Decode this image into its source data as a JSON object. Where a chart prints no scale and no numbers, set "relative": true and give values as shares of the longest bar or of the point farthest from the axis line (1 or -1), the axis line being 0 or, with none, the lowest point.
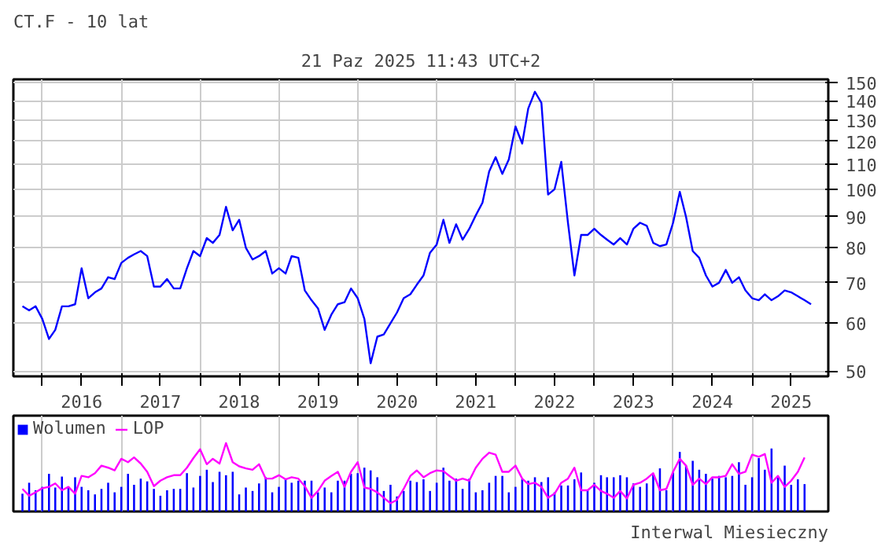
{
  "chart_data": [
    {
      "type": "line",
      "title": "CT.F - 10 lat",
      "annotations": [
        "21 Paz 2025 11:43 UTC+2"
      ],
      "x": [
        "2015-10",
        "2015-11",
        "2015-12",
        "2016-01",
        "2016-02",
        "2016-03",
        "2016-04",
        "2016-05",
        "2016-06",
        "2016-07",
        "2016-08",
        "2016-09",
        "2016-10",
        "2016-11",
        "2016-12",
        "2017-01",
        "2017-02",
        "2017-03",
        "2017-04",
        "2017-05",
        "2017-06",
        "2017-07",
        "2017-08",
        "2017-09",
        "2017-10",
        "2017-11",
        "2017-12",
        "2018-01",
        "2018-02",
        "2018-03",
        "2018-04",
        "2018-05",
        "2018-06",
        "2018-07",
        "2018-08",
        "2018-09",
        "2018-10",
        "2018-11",
        "2018-12",
        "2019-01",
        "2019-02",
        "2019-03",
        "2019-04",
        "2019-05",
        "2019-06",
        "2019-07",
        "2019-08",
        "2019-09",
        "2019-10",
        "2019-11",
        "2019-12",
        "2020-01",
        "2020-02",
        "2020-03",
        "2020-04",
        "2020-05",
        "2020-06",
        "2020-07",
        "2020-08",
        "2020-09",
        "2020-10",
        "2020-11",
        "2020-12",
        "2021-01",
        "2021-02",
        "2021-03",
        "2021-04",
        "2021-05",
        "2021-06",
        "2021-07",
        "2021-08",
        "2021-09",
        "2021-10",
        "2021-11",
        "2021-12",
        "2022-01",
        "2022-02",
        "2022-03",
        "2022-04",
        "2022-05",
        "2022-06",
        "2022-07",
        "2022-08",
        "2022-09",
        "2022-10",
        "2022-11",
        "2022-12",
        "2023-01",
        "2023-02",
        "2023-03",
        "2023-04",
        "2023-05",
        "2023-06",
        "2023-07",
        "2023-08",
        "2023-09",
        "2023-10",
        "2023-11",
        "2023-12",
        "2024-01",
        "2024-02",
        "2024-03",
        "2024-04",
        "2024-05",
        "2024-06",
        "2024-07",
        "2024-08",
        "2024-09",
        "2024-10",
        "2024-11",
        "2024-12",
        "2025-01",
        "2025-02",
        "2025-03",
        "2025-04",
        "2025-05",
        "2025-06",
        "2025-07",
        "2025-08",
        "2025-09",
        "2025-10"
      ],
      "values": [
        64,
        63,
        64,
        61,
        56.5,
        58.5,
        64,
        64,
        64.5,
        74,
        66,
        67.5,
        68.5,
        71.5,
        71,
        75.5,
        77,
        78,
        79,
        77.5,
        69,
        69,
        71,
        68.5,
        68.5,
        74,
        79,
        77.5,
        83,
        81.5,
        84,
        93.5,
        85.5,
        89,
        80,
        76.5,
        77.5,
        79,
        72.5,
        74,
        72.5,
        77.5,
        77,
        68,
        65.5,
        63.5,
        58.5,
        62,
        64.5,
        65,
        68.5,
        66,
        61,
        51.5,
        57,
        57.5,
        60,
        62.5,
        66,
        67,
        69.5,
        72,
        78.5,
        81,
        89,
        81.5,
        87.5,
        82.5,
        86,
        90.5,
        95,
        107,
        113,
        106,
        112,
        127,
        119,
        136,
        145,
        139,
        98,
        100,
        111,
        88,
        72,
        84,
        84,
        86,
        84,
        82.5,
        81,
        83,
        81,
        86,
        88,
        87,
        81.5,
        80.5,
        81,
        88,
        99,
        90,
        79,
        77,
        72,
        69,
        70,
        73.5,
        70,
        71.5,
        68,
        66,
        65.5,
        67,
        65.5,
        66.5,
        68,
        67.5,
        66.5,
        65.5,
        64.5
      ],
      "color": "#0000ff",
      "log": "y",
      "ylim": [
        49,
        152
      ],
      "yticks": [
        50,
        60,
        70,
        80,
        90,
        100,
        110,
        120,
        130,
        140,
        150
      ],
      "xlim": [
        "2015-08-20",
        "2025-12-20"
      ],
      "xticks": [
        {
          "value": "2016-01-01",
          "label": null
        },
        {
          "value": "2016-07-01",
          "label": "2016"
        },
        {
          "value": "2017-01-01",
          "label": null
        },
        {
          "value": "2017-07-01",
          "label": "2017"
        },
        {
          "value": "2018-01-01",
          "label": null
        },
        {
          "value": "2018-07-01",
          "label": "2018"
        },
        {
          "value": "2019-01-01",
          "label": null
        },
        {
          "value": "2019-07-01",
          "label": "2019"
        },
        {
          "value": "2020-01-01",
          "label": null
        },
        {
          "value": "2020-07-01",
          "label": "2020"
        },
        {
          "value": "2021-01-01",
          "label": null
        },
        {
          "value": "2021-07-01",
          "label": "2021"
        },
        {
          "value": "2022-01-01",
          "label": null
        },
        {
          "value": "2022-07-01",
          "label": "2022"
        },
        {
          "value": "2023-01-01",
          "label": null
        },
        {
          "value": "2023-07-01",
          "label": "2023"
        },
        {
          "value": "2024-01-01",
          "label": null
        },
        {
          "value": "2024-07-01",
          "label": "2024"
        },
        {
          "value": "2025-01-01",
          "label": null
        },
        {
          "value": "2025-07-01",
          "label": "2025"
        }
      ],
      "grid": true
    },
    {
      "type": "bar",
      "relative": true,
      "annotations": [
        "Interwal Miesieczny"
      ],
      "legend": "top left",
      "grid": "x",
      "tick_labels": false,
      "x": [
        "2015-10",
        "2015-11",
        "2015-12",
        "2016-01",
        "2016-02",
        "2016-03",
        "2016-04",
        "2016-05",
        "2016-06",
        "2016-07",
        "2016-08",
        "2016-09",
        "2016-10",
        "2016-11",
        "2016-12",
        "2017-01",
        "2017-02",
        "2017-03",
        "2017-04",
        "2017-05",
        "2017-06",
        "2017-07",
        "2017-08",
        "2017-09",
        "2017-10",
        "2017-11",
        "2017-12",
        "2018-01",
        "2018-02",
        "2018-03",
        "2018-04",
        "2018-05",
        "2018-06",
        "2018-07",
        "2018-08",
        "2018-09",
        "2018-10",
        "2018-11",
        "2018-12",
        "2019-01",
        "2019-02",
        "2019-03",
        "2019-04",
        "2019-05",
        "2019-06",
        "2019-07",
        "2019-08",
        "2019-09",
        "2019-10",
        "2019-11",
        "2019-12",
        "2020-01",
        "2020-02",
        "2020-03",
        "2020-04",
        "2020-05",
        "2020-06",
        "2020-07",
        "2020-08",
        "2020-09",
        "2020-10",
        "2020-11",
        "2020-12",
        "2021-01",
        "2021-02",
        "2021-03",
        "2021-04",
        "2021-05",
        "2021-06",
        "2021-07",
        "2021-08",
        "2021-09",
        "2021-10",
        "2021-11",
        "2021-12",
        "2022-01",
        "2022-02",
        "2022-03",
        "2022-04",
        "2022-05",
        "2022-06",
        "2022-07",
        "2022-08",
        "2022-09",
        "2022-10",
        "2022-11",
        "2022-12",
        "2023-01",
        "2023-02",
        "2023-03",
        "2023-04",
        "2023-05",
        "2023-06",
        "2023-07",
        "2023-08",
        "2023-09",
        "2023-10",
        "2023-11",
        "2023-12",
        "2024-01",
        "2024-02",
        "2024-03",
        "2024-04",
        "2024-05",
        "2024-06",
        "2024-07",
        "2024-08",
        "2024-09",
        "2024-10",
        "2024-11",
        "2024-12",
        "2025-01",
        "2025-02",
        "2025-03",
        "2025-04",
        "2025-05",
        "2025-06",
        "2025-07",
        "2025-08",
        "2025-09"
      ],
      "xlim": [
        "2015-08-20",
        "2025-12-20"
      ],
      "xticks": [
        {
          "value": "2016-01-01",
          "label": null
        },
        {
          "value": "2017-01-01",
          "label": null
        },
        {
          "value": "2018-01-01",
          "label": null
        },
        {
          "value": "2019-01-01",
          "label": null
        },
        {
          "value": "2020-01-01",
          "label": null
        },
        {
          "value": "2021-01-01",
          "label": null
        },
        {
          "value": "2022-01-01",
          "label": null
        },
        {
          "value": "2023-01-01",
          "label": null
        },
        {
          "value": "2024-01-01",
          "label": null
        },
        {
          "value": "2025-01-01",
          "label": null
        }
      ],
      "series": [
        {
          "name": "Wolumen",
          "color": "#0000ff",
          "values": [
            0.26,
            0.42,
            0.31,
            0.36,
            0.55,
            0.35,
            0.51,
            0.36,
            0.5,
            0.36,
            0.31,
            0.25,
            0.33,
            0.42,
            0.28,
            0.36,
            0.55,
            0.39,
            0.48,
            0.44,
            0.33,
            0.23,
            0.31,
            0.33,
            0.33,
            0.56,
            0.35,
            0.52,
            0.61,
            0.43,
            0.58,
            0.53,
            0.58,
            0.25,
            0.35,
            0.3,
            0.41,
            0.5,
            0.28,
            0.36,
            0.47,
            0.42,
            0.45,
            0.45,
            0.45,
            0.28,
            0.35,
            0.28,
            0.45,
            0.45,
            0.55,
            0.56,
            0.64,
            0.6,
            0.5,
            0.3,
            0.39,
            0.22,
            0.3,
            0.45,
            0.43,
            0.47,
            0.3,
            0.42,
            0.64,
            0.45,
            0.48,
            0.33,
            0.48,
            0.28,
            0.31,
            0.42,
            0.52,
            0.52,
            0.28,
            0.36,
            0.47,
            0.45,
            0.5,
            0.43,
            0.5,
            0.28,
            0.38,
            0.38,
            0.47,
            0.57,
            0.31,
            0.42,
            0.53,
            0.5,
            0.5,
            0.53,
            0.5,
            0.41,
            0.36,
            0.41,
            0.55,
            0.63,
            0.31,
            0.57,
            0.87,
            0.67,
            0.74,
            0.61,
            0.55,
            0.48,
            0.52,
            0.5,
            0.52,
            0.72,
            0.39,
            0.5,
            0.78,
            0.61,
            0.92,
            0.5,
            0.67,
            0.39,
            0.47,
            0.4
          ]
        },
        {
          "name": "LOP",
          "type": "line",
          "color": "#ff00ff",
          "values": [
            0.33,
            0.23,
            0.28,
            0.34,
            0.36,
            0.41,
            0.31,
            0.36,
            0.26,
            0.52,
            0.5,
            0.56,
            0.67,
            0.64,
            0.6,
            0.77,
            0.72,
            0.79,
            0.7,
            0.58,
            0.37,
            0.45,
            0.5,
            0.53,
            0.53,
            0.64,
            0.78,
            0.91,
            0.69,
            0.77,
            0.7,
            1.0,
            0.72,
            0.66,
            0.63,
            0.61,
            0.69,
            0.48,
            0.48,
            0.53,
            0.47,
            0.5,
            0.48,
            0.37,
            0.2,
            0.3,
            0.45,
            0.52,
            0.58,
            0.36,
            0.58,
            0.72,
            0.35,
            0.33,
            0.28,
            0.2,
            0.12,
            0.17,
            0.33,
            0.52,
            0.6,
            0.5,
            0.56,
            0.6,
            0.59,
            0.52,
            0.45,
            0.48,
            0.45,
            0.64,
            0.77,
            0.86,
            0.83,
            0.58,
            0.58,
            0.67,
            0.48,
            0.4,
            0.42,
            0.36,
            0.2,
            0.26,
            0.42,
            0.48,
            0.64,
            0.31,
            0.31,
            0.39,
            0.3,
            0.26,
            0.2,
            0.3,
            0.19,
            0.39,
            0.42,
            0.48,
            0.56,
            0.31,
            0.33,
            0.58,
            0.77,
            0.67,
            0.39,
            0.48,
            0.4,
            0.5,
            0.5,
            0.52,
            0.69,
            0.55,
            0.58,
            0.83,
            0.8,
            0.84,
            0.42,
            0.52,
            0.36,
            0.45,
            0.58,
            0.79
          ]
        }
      ]
    }
  ]
}
